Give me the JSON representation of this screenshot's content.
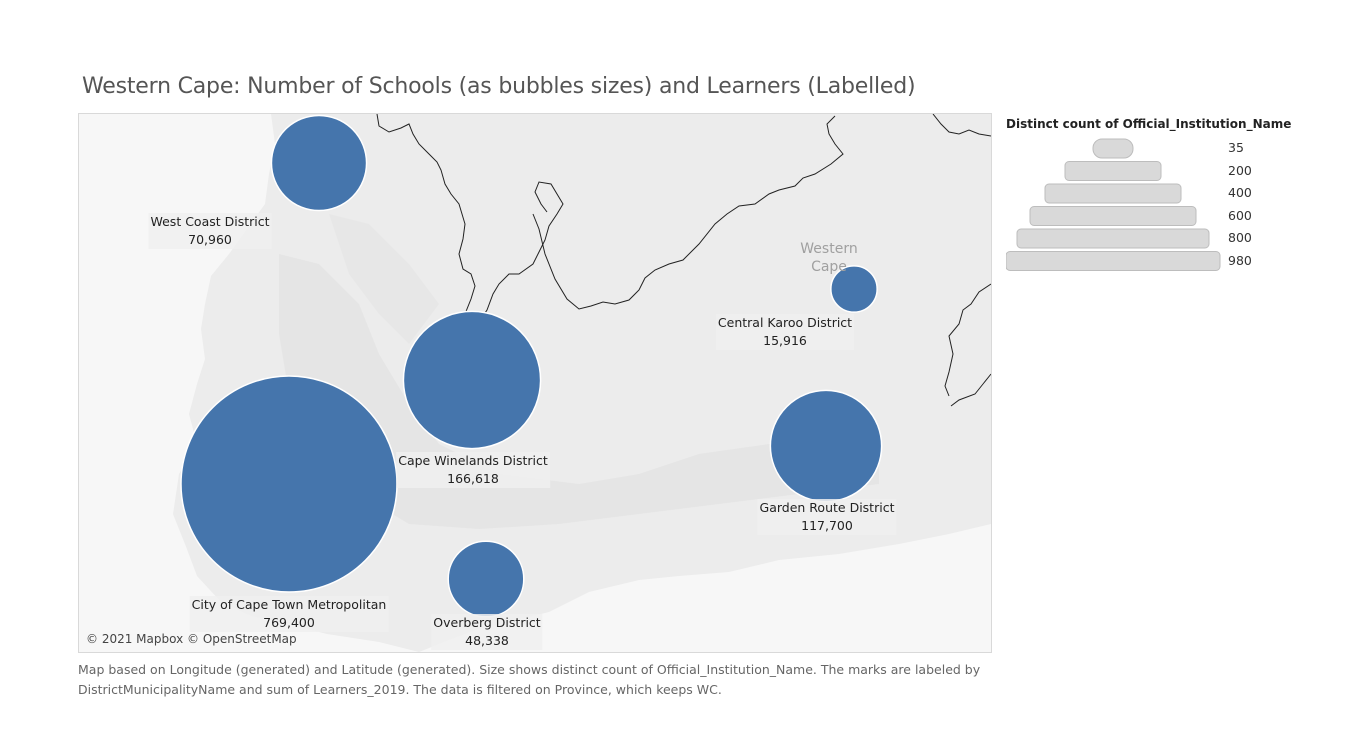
{
  "title": "Western Cape: Number of Schools (as bubbles sizes)  and Learners (Labelled)",
  "map": {
    "attribution": "© 2021 Mapbox © OpenStreetMap",
    "place_label": "Western\nCape",
    "bubble_color": "#4575ac",
    "land_color": "#ececec",
    "ocean_color": "#f7f7f7"
  },
  "legend": {
    "title": "Distinct count of Official_Institution_Name",
    "values": [
      "35",
      "200",
      "400",
      "600",
      "800",
      "980"
    ]
  },
  "chart_data": {
    "type": "bubble-map",
    "size_measure": "Distinct count of Official_Institution_Name",
    "label_measure": "sum of Learners_2019",
    "points": [
      {
        "name": "West Coast District",
        "learners": "70,960",
        "schools": 190
      },
      {
        "name": "Central Karoo District",
        "learners": "15,916",
        "schools": 45
      },
      {
        "name": "Cape Winelands District",
        "learners": "166,618",
        "schools": 395
      },
      {
        "name": "City of Cape Town Metropolitan",
        "learners": "769,400",
        "schools": 980
      },
      {
        "name": "Garden Route District",
        "learners": "117,700",
        "schools": 260
      },
      {
        "name": "Overberg District",
        "learners": "48,338",
        "schools": 120
      }
    ]
  },
  "caption": "Map based on Longitude (generated) and Latitude (generated).  Size shows distinct count of Official_Institution_Name.  The marks are labeled by DistrictMunicipalityName and sum of Learners_2019. The data is filtered on Province, which keeps WC."
}
